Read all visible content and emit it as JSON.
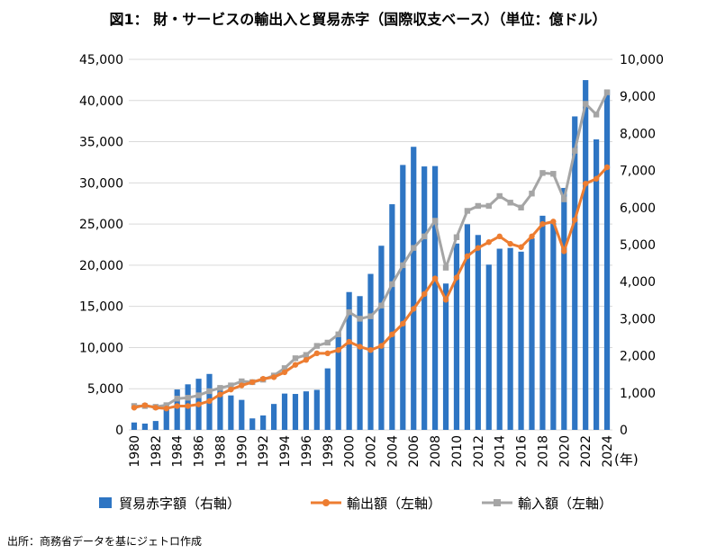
{
  "title": "図1： 財・サービスの輸出入と貿易赤字（国際収支ベース）（単位：億ドル）",
  "source": "出所：商務省データを基にジェトロ作成",
  "colors": {
    "bar": "#2e75c3",
    "export": "#ed7d31",
    "import": "#a5a5a5",
    "grid": "#d9d9d9"
  },
  "chart_data": {
    "type": "bar+line",
    "x_unit_label": "(年)",
    "x_tick_labels": [
      "1980",
      "1982",
      "1984",
      "1986",
      "1988",
      "1990",
      "1992",
      "1994",
      "1996",
      "1998",
      "2000",
      "2002",
      "2004",
      "2006",
      "2008",
      "2010",
      "2012",
      "2014",
      "2016",
      "2018",
      "2020",
      "2022",
      "2024"
    ],
    "y_left_ticks": [
      "0",
      "5,000",
      "10,000",
      "15,000",
      "20,000",
      "25,000",
      "30,000",
      "35,000",
      "40,000",
      "45,000"
    ],
    "y_right_ticks": [
      "0",
      "1,000",
      "2,000",
      "3,000",
      "4,000",
      "5,000",
      "6,000",
      "7,000",
      "8,000",
      "9,000",
      "10,000"
    ],
    "ylim_left": [
      0,
      45000
    ],
    "ylim_right": [
      0,
      10000
    ],
    "grid": "horizontal",
    "legend_position": "bottom",
    "years": [
      1980,
      1981,
      1982,
      1983,
      1984,
      1985,
      1986,
      1987,
      1988,
      1989,
      1990,
      1991,
      1992,
      1993,
      1994,
      1995,
      1996,
      1997,
      1998,
      1999,
      2000,
      2001,
      2002,
      2003,
      2004,
      2005,
      2006,
      2007,
      2008,
      2009,
      2010,
      2011,
      2012,
      2013,
      2014,
      2015,
      2016,
      2017,
      2018,
      2019,
      2020,
      2021,
      2022,
      2023,
      2024
    ],
    "series": [
      {
        "name": "貿易赤字額（右軸）",
        "type": "bar",
        "axis": "right",
        "values": [
          200,
          170,
          240,
          580,
          1090,
          1230,
          1380,
          1510,
          1140,
          930,
          810,
          310,
          390,
          700,
          980,
          970,
          1040,
          1080,
          1660,
          2600,
          3720,
          3610,
          4210,
          4970,
          6090,
          7150,
          7640,
          7110,
          7120,
          3950,
          5030,
          5550,
          5260,
          4460,
          4890,
          4910,
          4810,
          5170,
          5780,
          5580,
          6530,
          8460,
          9440,
          7840,
          9180
        ]
      },
      {
        "name": "輸出額（左軸）",
        "type": "line",
        "axis": "left",
        "values": [
          2700,
          3000,
          2700,
          2600,
          2900,
          2900,
          3100,
          3500,
          4300,
          4900,
          5400,
          5800,
          6200,
          6400,
          7000,
          7900,
          8500,
          9300,
          9300,
          9700,
          10700,
          10100,
          9700,
          10200,
          11600,
          12900,
          14700,
          16500,
          18400,
          15800,
          18500,
          21100,
          22100,
          22800,
          23500,
          22600,
          22200,
          23500,
          25000,
          25300,
          21700,
          25500,
          29900,
          30500,
          31900
        ]
      },
      {
        "name": "輸入額（左軸）",
        "type": "line",
        "axis": "left",
        "values": [
          2900,
          2900,
          2800,
          3000,
          3800,
          3900,
          4200,
          4700,
          5100,
          5400,
          5900,
          5800,
          6100,
          6600,
          7500,
          8700,
          9100,
          10200,
          10600,
          11600,
          14300,
          13500,
          13800,
          15100,
          17700,
          20000,
          22100,
          23500,
          25400,
          19700,
          23400,
          26600,
          27200,
          27200,
          28400,
          27600,
          27000,
          28700,
          31200,
          31100,
          28000,
          33900,
          39600,
          38300,
          41000
        ]
      }
    ]
  }
}
